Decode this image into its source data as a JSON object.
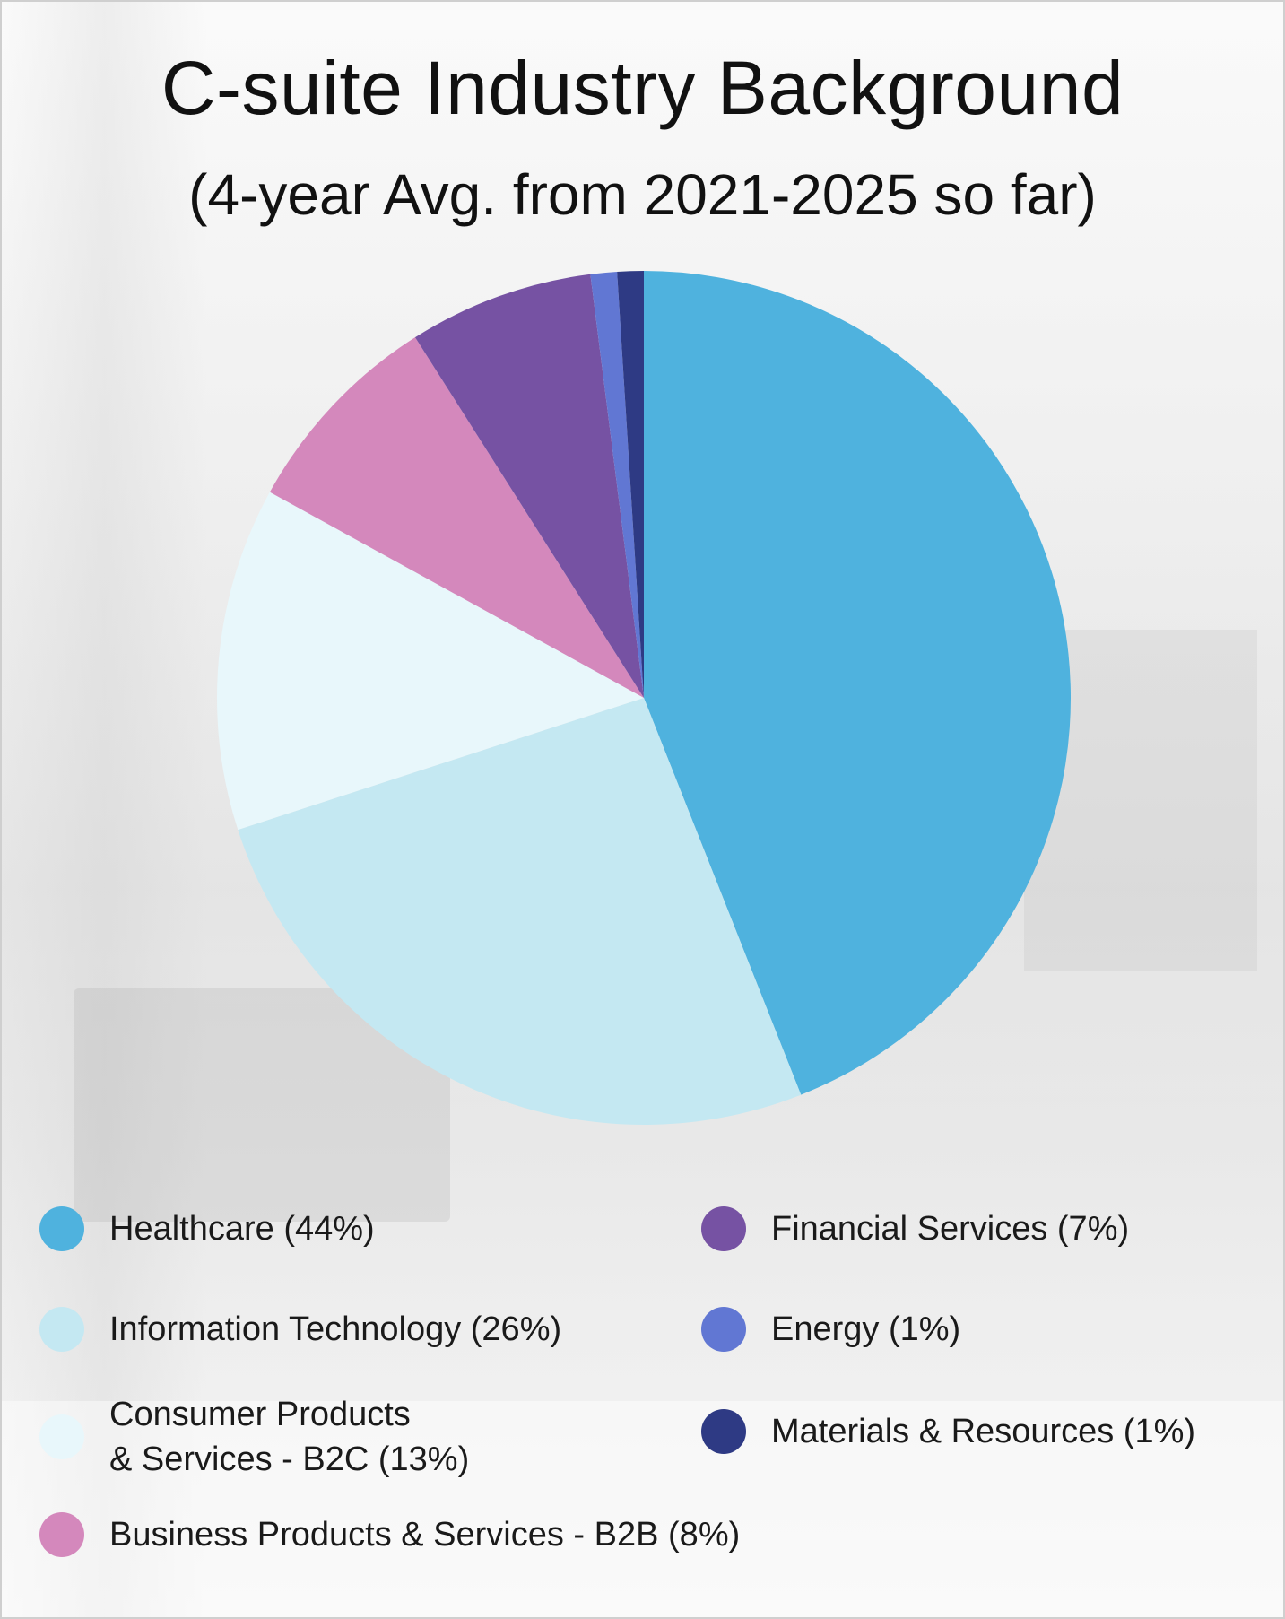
{
  "chart_data": {
    "type": "pie",
    "title": "C-suite Industry Background",
    "subtitle": "(4-year Avg. from 2021-2025 so far)",
    "start_angle_deg": 0,
    "direction": "clockwise",
    "slices": [
      {
        "name": "Healthcare",
        "value": 44,
        "label": "Healthcare (44%)",
        "color": "#4fb2de"
      },
      {
        "name": "Information Technology",
        "value": 26,
        "label": "Information Technology (26%)",
        "color": "#c4e8f2"
      },
      {
        "name": "Consumer Products & Services - B2C",
        "value": 13,
        "label": "Consumer Products\n& Services - B2C (13%)",
        "color": "#e8f7fb"
      },
      {
        "name": "Business Products & Services - B2B",
        "value": 8,
        "label": "Business Products & Services - B2B (8%)",
        "color": "#d488bc"
      },
      {
        "name": "Financial Services",
        "value": 7,
        "label": "Financial Services (7%)",
        "color": "#7652a3"
      },
      {
        "name": "Energy",
        "value": 1,
        "label": "Energy (1%)",
        "color": "#6177d3"
      },
      {
        "name": "Materials & Resources",
        "value": 1,
        "label": "Materials & Resources (1%)",
        "color": "#2e3a84"
      }
    ]
  }
}
